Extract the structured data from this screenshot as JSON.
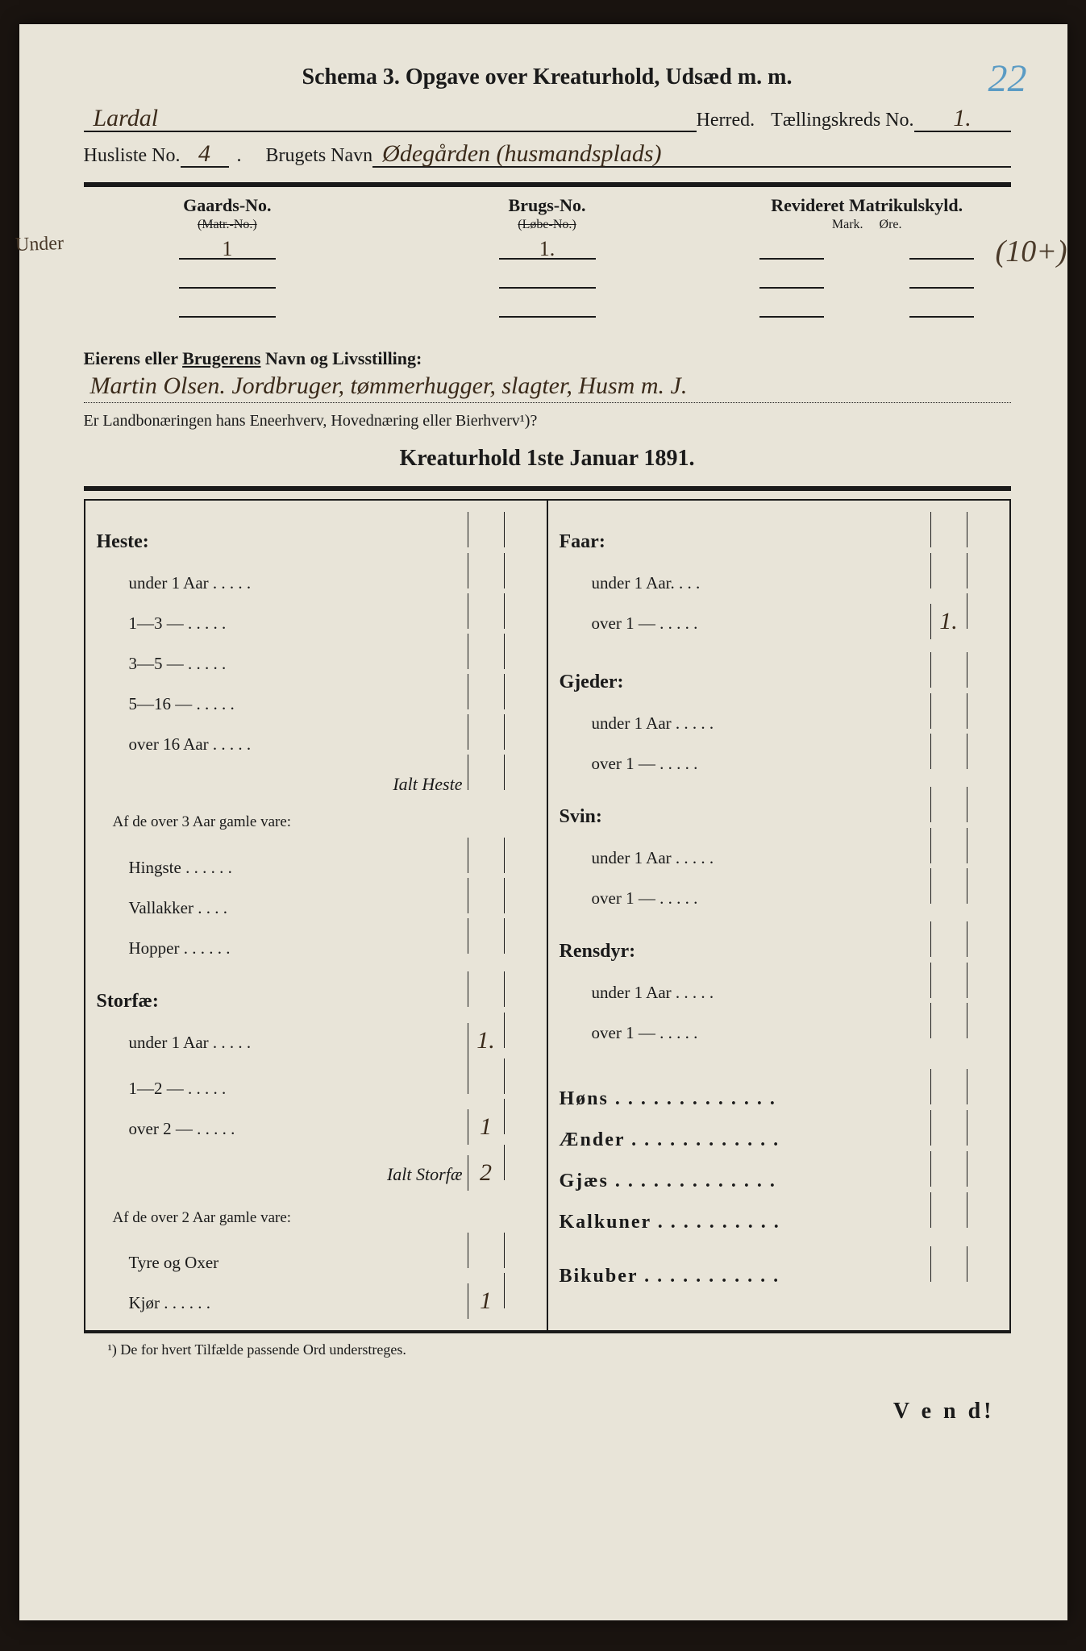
{
  "page_number_blue": "22",
  "margin_note": "Under",
  "side_note": "(10+)",
  "header": {
    "title": "Schema 3.  Opgave over Kreaturhold, Udsæd m. m.",
    "herred_label": "Herred.",
    "herred_value": "Lardal",
    "taellingskreds_label": "Tællingskreds No.",
    "taellingskreds_value": "1.",
    "husliste_label": "Husliste No.",
    "husliste_value": "4",
    "brugets_label": "Brugets Navn",
    "brugets_value": "Ødegården (husmandsplads)"
  },
  "matrikul": {
    "gaards_hdr": "Gaards-No.",
    "gaards_sub": "(Matr.-No.)",
    "gaards_values": [
      "1",
      "",
      ""
    ],
    "brugs_hdr": "Brugs-No.",
    "brugs_sub": "(Løbe-No.)",
    "brugs_values": [
      "1.",
      "",
      ""
    ],
    "rev_hdr": "Revideret Matrikulskyld.",
    "rev_sub1": "Mark.",
    "rev_sub2": "Øre."
  },
  "owner": {
    "label_pre": "Eierens eller ",
    "label_u": "Brugerens",
    "label_post": " Navn og Livsstilling:",
    "value": "Martin Olsen. Jordbruger, tømmerhugger, slagter, Husm m. J.",
    "question": "Er Landbonæringen hans Eneerhverv, Hovednæring eller Bierhverv¹)?",
    "question_hw": ""
  },
  "section_title": "Kreaturhold 1ste Januar 1891.",
  "left_col": {
    "heste_hdr": "Heste:",
    "heste_rows": [
      {
        "label": "under 1 Aar . . . . .",
        "v1": "",
        "v2": ""
      },
      {
        "label": "1—3   —  . . . . .",
        "v1": "",
        "v2": ""
      },
      {
        "label": "3—5   —  . . . . .",
        "v1": "",
        "v2": ""
      },
      {
        "label": "5—16  —  . . . . .",
        "v1": "",
        "v2": ""
      },
      {
        "label": "over 16 Aar . . . . .",
        "v1": "",
        "v2": ""
      }
    ],
    "heste_total_label": "Ialt Heste",
    "heste_sub_note": "Af de over 3 Aar gamle vare:",
    "heste_sub_rows": [
      {
        "label": "Hingste . . . . . .",
        "v1": "",
        "v2": ""
      },
      {
        "label": "Vallakker . . . .",
        "v1": "",
        "v2": ""
      },
      {
        "label": "Hopper  . . . . . .",
        "v1": "",
        "v2": ""
      }
    ],
    "storfae_hdr": "Storfæ:",
    "storfae_rows": [
      {
        "label": "under 1 Aar . . . . .",
        "v1": "1.",
        "v2": ""
      },
      {
        "label": "1—2   —  . . . . .",
        "v1": "",
        "v2": ""
      },
      {
        "label": "over 2  —  . . . . .",
        "v1": "1",
        "v2": ""
      }
    ],
    "storfae_total_label": "Ialt Storfæ",
    "storfae_total_v1": "2",
    "storfae_sub_note": "Af de over 2 Aar gamle vare:",
    "storfae_sub_rows": [
      {
        "label": "Tyre og Oxer",
        "v1": "",
        "v2": ""
      },
      {
        "label": "Kjør . . . . . .",
        "v1": "1",
        "v2": ""
      }
    ]
  },
  "right_col": {
    "faar_hdr": "Faar:",
    "faar_rows": [
      {
        "label": "under 1 Aar.  . . .",
        "v1": "",
        "v2": ""
      },
      {
        "label": "over 1  —  . . . . .",
        "v1": "1.",
        "v2": ""
      }
    ],
    "gjeder_hdr": "Gjeder:",
    "gjeder_rows": [
      {
        "label": "under 1 Aar . . . . .",
        "v1": "",
        "v2": ""
      },
      {
        "label": "over 1  —  . . . . .",
        "v1": "",
        "v2": ""
      }
    ],
    "svin_hdr": "Svin:",
    "svin_rows": [
      {
        "label": "under 1 Aar . . . . .",
        "v1": "",
        "v2": ""
      },
      {
        "label": "over 1  —  . . . . .",
        "v1": "",
        "v2": ""
      }
    ],
    "rensdyr_hdr": "Rensdyr:",
    "rensdyr_rows": [
      {
        "label": "under 1 Aar . . . . .",
        "v1": "",
        "v2": ""
      },
      {
        "label": "over 1  —  . . . . .",
        "v1": "",
        "v2": ""
      }
    ],
    "misc_rows": [
      {
        "label": "Høns . . . . . . . . . . . . .",
        "v1": "",
        "v2": ""
      },
      {
        "label": "Ænder . . . . . . . . . . . .",
        "v1": "",
        "v2": ""
      },
      {
        "label": "Gjæs . . . . . . . . . . . . .",
        "v1": "",
        "v2": ""
      },
      {
        "label": "Kalkuner . . . . . . . . . .",
        "v1": "",
        "v2": ""
      }
    ],
    "bikuber_label": "Bikuber . . . . . . . . . . ."
  },
  "footnote": "¹) De for hvert Tilfælde passende Ord understreges.",
  "vend": "V e n d!"
}
